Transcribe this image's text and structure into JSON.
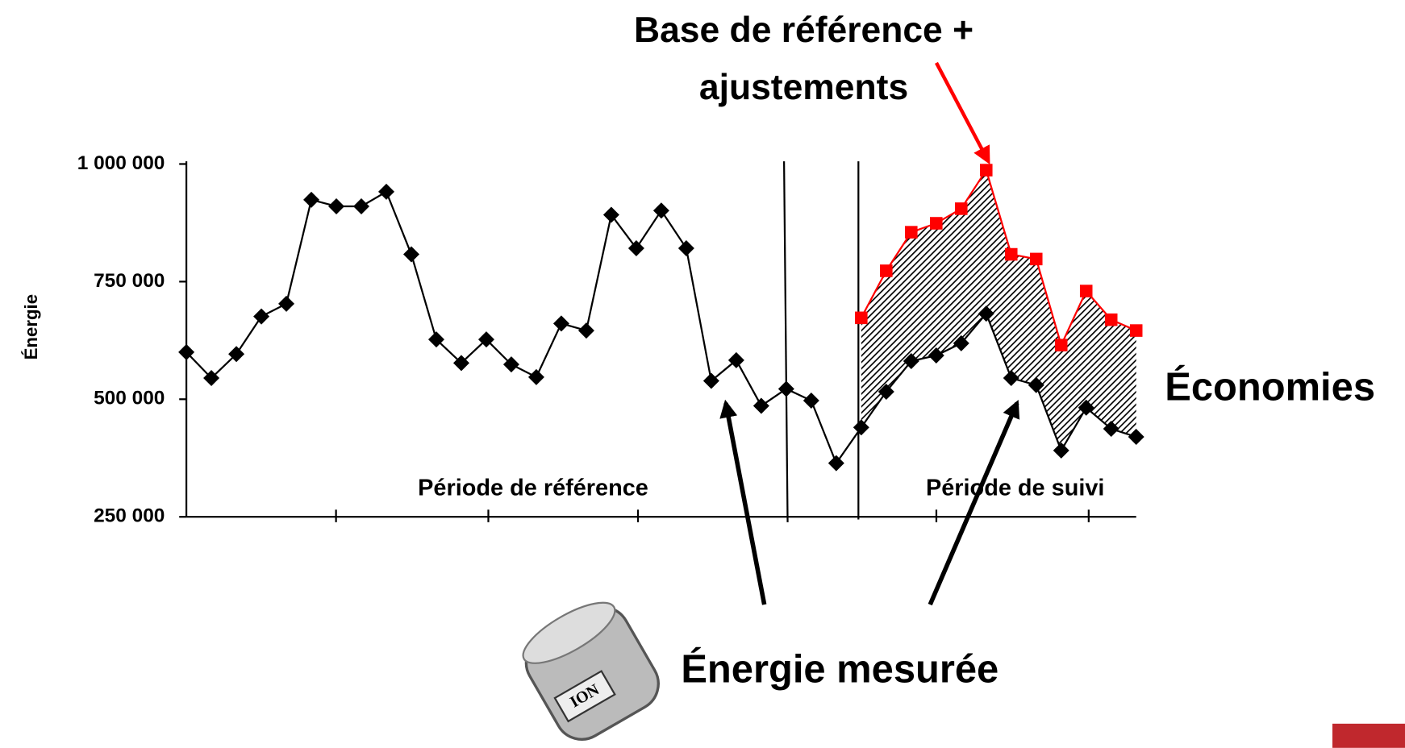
{
  "chart_data": {
    "type": "line",
    "annotations": {
      "baseline": [
        "Base de référence +",
        "ajustements"
      ],
      "savings": "Économies",
      "measured": "Énergie mesurée",
      "reference_period": "Période de référence",
      "followup_period": "Période de suivi",
      "meter_label": "ION"
    },
    "y_label": "Énergie",
    "ylim": [
      250000,
      1000000
    ],
    "yticks": [
      {
        "value": 250000,
        "label": "250 000"
      },
      {
        "value": 500000,
        "label": "500 000"
      },
      {
        "value": 750000,
        "label": "750 000"
      },
      {
        "value": 1000000,
        "label": "1 000 000"
      }
    ],
    "series": [
      {
        "color": "#000000",
        "marker": "diamond",
        "values": [
          600000,
          545000,
          596000,
          676000,
          703000,
          924000,
          910000,
          910000,
          941000,
          808000,
          627000,
          577000,
          627000,
          574000,
          547000,
          661000,
          646000,
          892000,
          821000,
          901000,
          821000,
          539000,
          583000,
          486000,
          522000,
          497000,
          364000,
          440000,
          516000,
          581000,
          593000,
          619000,
          682000,
          545000,
          530000,
          391000,
          482000,
          437000,
          420000
        ]
      },
      {
        "color": "#ff0000",
        "marker": "square",
        "values": [
          null,
          null,
          null,
          null,
          null,
          null,
          null,
          null,
          null,
          null,
          null,
          null,
          null,
          null,
          null,
          null,
          null,
          null,
          null,
          null,
          null,
          null,
          null,
          null,
          null,
          null,
          null,
          673000,
          773000,
          855000,
          874000,
          905000,
          987000,
          808000,
          798000,
          615000,
          730000,
          669000,
          646000
        ]
      }
    ]
  }
}
